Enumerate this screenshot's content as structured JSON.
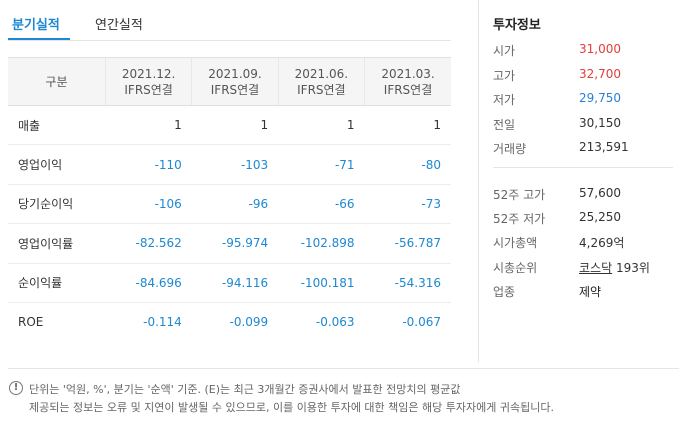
{
  "tabs": [
    {
      "label": "분기실적",
      "active": true
    },
    {
      "label": "연간실적",
      "active": false
    }
  ],
  "table": {
    "header_label": "구분",
    "columns": [
      {
        "date": "2021.12.",
        "basis": "IFRS연결"
      },
      {
        "date": "2021.09.",
        "basis": "IFRS연결"
      },
      {
        "date": "2021.06.",
        "basis": "IFRS연결"
      },
      {
        "date": "2021.03.",
        "basis": "IFRS연결"
      }
    ],
    "rows": [
      {
        "label": "매출",
        "values": [
          "1",
          "1",
          "1",
          "1"
        ]
      },
      {
        "label": "영업이익",
        "values": [
          "-110",
          "-103",
          "-71",
          "-80"
        ]
      },
      {
        "label": "당기순이익",
        "values": [
          "-106",
          "-96",
          "-66",
          "-73"
        ]
      },
      {
        "label": "영업이익률",
        "values": [
          "-82.562",
          "-95.974",
          "-102.898",
          "-56.787"
        ]
      },
      {
        "label": "순이익률",
        "values": [
          "-84.696",
          "-94.116",
          "-100.181",
          "-54.316"
        ]
      },
      {
        "label": "ROE",
        "values": [
          "-0.114",
          "-0.099",
          "-0.063",
          "-0.067"
        ]
      }
    ]
  },
  "info": {
    "title": "투자정보",
    "price": [
      {
        "key": "시가",
        "value": "31,000",
        "tone": "up"
      },
      {
        "key": "고가",
        "value": "32,700",
        "tone": "up"
      },
      {
        "key": "저가",
        "value": "29,750",
        "tone": "down"
      },
      {
        "key": "전일",
        "value": "30,150",
        "tone": "neutral"
      },
      {
        "key": "거래량",
        "value": "213,591",
        "tone": "neutral"
      }
    ],
    "stats": {
      "high52_key": "52주 고가",
      "high52": "57,600",
      "low52_key": "52주 저가",
      "low52": "25,250",
      "mcap_key": "시가총액",
      "mcap": "4,269억",
      "rank_key": "시총순위",
      "rank_market": "코스닥",
      "rank_value": "193위",
      "sector_key": "업종",
      "sector": "제약"
    }
  },
  "footer": {
    "icon": "notice-icon",
    "line1": "단위는 '억원, %', 분기는 '순액' 기준. (E)는 최근 3개월간 증권사에서 발표한 전망치의 평균값",
    "line2": "제공되는 정보는 오류 및 지연이 발생될 수 있으므로, 이를 이용한 투자에 대한 책임은 해당 투자자에게 귀속됩니다."
  },
  "colors": {
    "accent": "#1e88d2",
    "up": "#e0403a",
    "down": "#2a7fd4"
  }
}
